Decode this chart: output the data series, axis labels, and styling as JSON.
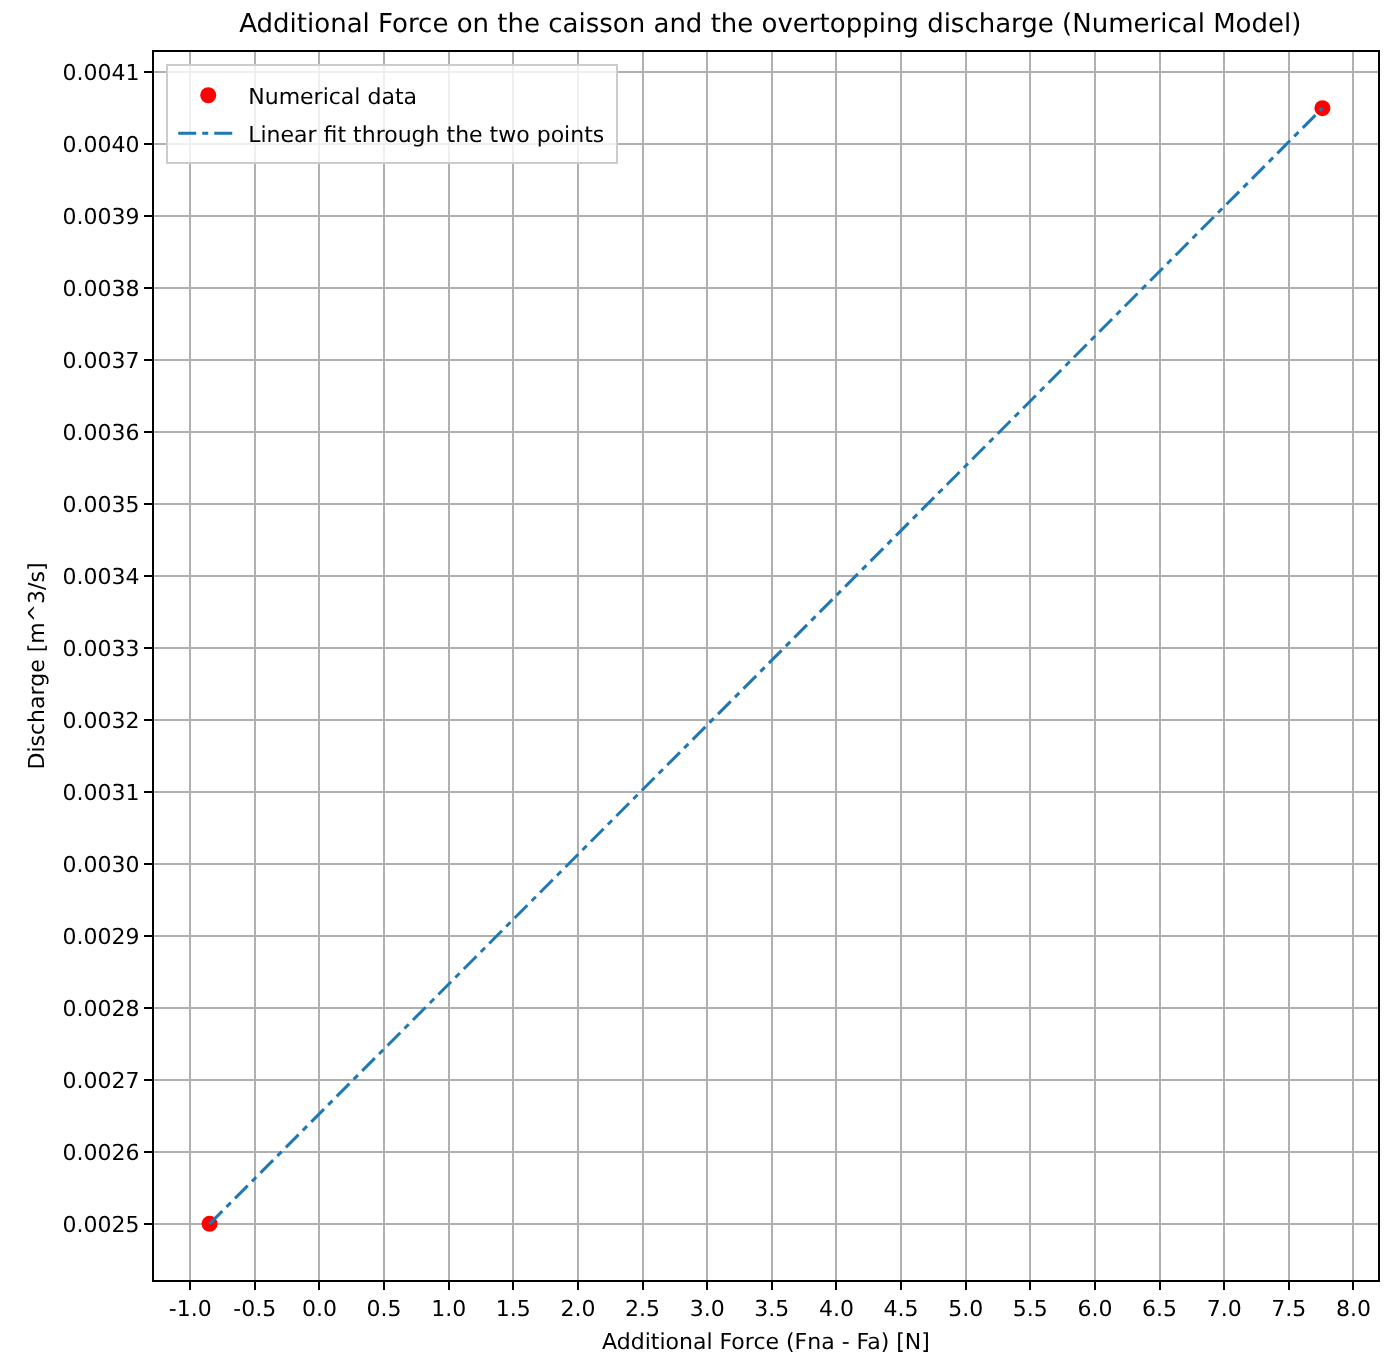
{
  "chart_data": {
    "type": "scatter",
    "title": "Additional Force on the caisson and the overtopping discharge (Numerical Model)",
    "xlabel": "Additional Force (Fna - Fa) [N]",
    "ylabel": "Discharge [m^3/s]",
    "series": [
      {
        "name": "Numerical data",
        "color": "#ff0000",
        "marker": "circle",
        "values": [
          0.0025,
          0.00405
        ]
      },
      {
        "name": "Linear fit through the two points",
        "type": "line",
        "color": "#1f77b4",
        "line_style": "dashdot",
        "marker": "none",
        "values": [
          0.0025,
          0.00405
        ]
      }
    ],
    "x": [
      -0.85,
      7.76
    ],
    "xlim": [
      -1.28,
      8.19
    ],
    "xticks": [
      {
        "value": -1,
        "label": "-1.0"
      },
      -0.5,
      {
        "value": 0,
        "label": "0.0"
      },
      0.5,
      {
        "value": 1,
        "label": "1.0"
      },
      1.5,
      {
        "value": 2,
        "label": "2.0"
      },
      2.5,
      {
        "value": 3,
        "label": "3.0"
      },
      3.5,
      {
        "value": 4,
        "label": "4.0"
      },
      4.5,
      {
        "value": 5,
        "label": "5.0"
      },
      5.5,
      {
        "value": 6,
        "label": "6.0"
      },
      6.5,
      {
        "value": 7,
        "label": "7.0"
      },
      7.5,
      {
        "value": 8,
        "label": "8.0"
      }
    ],
    "ylim": [
      0.002422,
      0.004128
    ],
    "yticks": [
      0.0025,
      0.0026,
      0.0027,
      0.0028,
      0.0029,
      {
        "value": 0.003,
        "label": "0.0030"
      },
      0.0031,
      0.0032,
      0.0033,
      0.0034,
      0.0035,
      0.0036,
      0.0037,
      0.0038,
      0.0039,
      {
        "value": 0.004,
        "label": "0.0040"
      },
      0.0041
    ],
    "grid": true,
    "legend": "top left"
  }
}
